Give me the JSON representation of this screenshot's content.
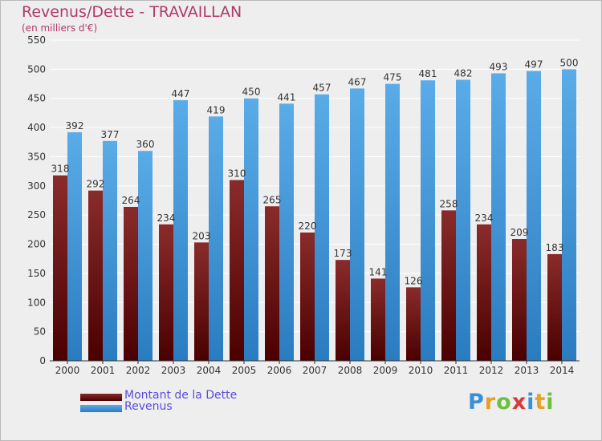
{
  "header": {
    "title": "Revenus/Dette - TRAVAILLAN",
    "subtitle": "(en milliers d'€)"
  },
  "colors": {
    "dette_top": "#8a2b2b",
    "dette_bottom": "#4a0000",
    "revenus_top": "#5aace8",
    "revenus_bottom": "#2a7cc0",
    "grid": "#ffffff",
    "background": "#eeeeee"
  },
  "chart_data": {
    "type": "bar",
    "title": "Revenus/Dette - TRAVAILLAN",
    "subtitle": "(en milliers d'€)",
    "xlabel": "",
    "ylabel": "",
    "ylim": [
      0,
      550
    ],
    "yticks": [
      0,
      50,
      100,
      150,
      200,
      250,
      300,
      350,
      400,
      450,
      500,
      550
    ],
    "grid": true,
    "legend_position": "bottom-left",
    "categories": [
      "2000",
      "2001",
      "2002",
      "2003",
      "2004",
      "2005",
      "2006",
      "2007",
      "2008",
      "2009",
      "2010",
      "2011",
      "2012",
      "2013",
      "2014"
    ],
    "series": [
      {
        "name": "Montant de la Dette",
        "values": [
          318,
          292,
          264,
          234,
          203,
          310,
          265,
          220,
          173,
          141,
          126,
          258,
          234,
          209,
          183
        ]
      },
      {
        "name": "Revenus",
        "values": [
          392,
          377,
          360,
          447,
          419,
          450,
          441,
          457,
          467,
          475,
          481,
          482,
          493,
          497,
          500
        ]
      }
    ]
  },
  "legend": {
    "dette_label": "Montant de la Dette",
    "revenus_label": "Revenus"
  },
  "logo": {
    "letters": [
      "P",
      "r",
      "o",
      "x",
      "i",
      "t",
      "i"
    ],
    "colors": [
      "#3a8fd8",
      "#e8a020",
      "#6cc040",
      "#d83a3a",
      "#3a8fd8",
      "#e8a020",
      "#6cc040"
    ]
  }
}
